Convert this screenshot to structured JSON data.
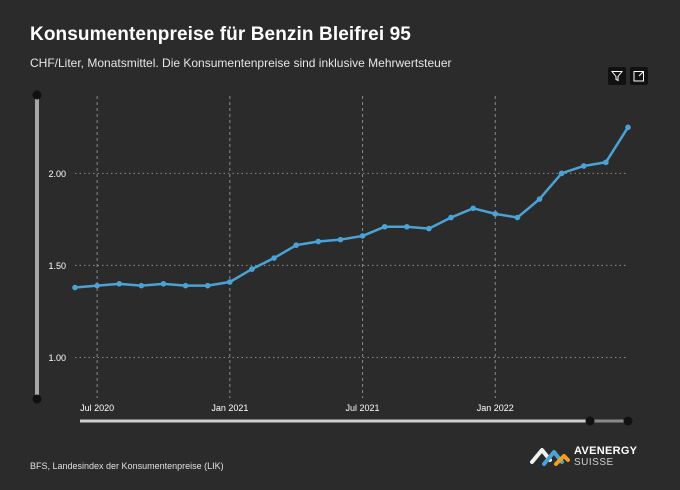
{
  "header": {
    "title": "Konsumentenpreise für Benzin Bleifrei 95",
    "subtitle": "CHF/Liter, Monatsmittel. Die Konsumentenpreise sind inklusive Mehrwertsteuer"
  },
  "toolbar": {
    "filter_icon": "filter-icon",
    "expand_icon": "expand-icon"
  },
  "footer": {
    "source": "BFS, Landesindex der Konsumentenpreise (LIK)",
    "logo_line1": "AVENERGY",
    "logo_line2": "SUISSE"
  },
  "colors": {
    "background": "#2b2b2b",
    "line": "#4aa3d4",
    "grid": "#8a8a8a"
  },
  "chart_data": {
    "type": "line",
    "title": "Konsumentenpreise für Benzin Bleifrei 95",
    "subtitle": "CHF/Liter, Monatsmittel. Die Konsumentenpreise sind inklusive Mehrwertsteuer",
    "xlabel": "",
    "ylabel": "",
    "x": [
      "2020-06",
      "2020-07",
      "2020-08",
      "2020-09",
      "2020-10",
      "2020-11",
      "2020-12",
      "2021-01",
      "2021-02",
      "2021-03",
      "2021-04",
      "2021-05",
      "2021-06",
      "2021-07",
      "2021-08",
      "2021-09",
      "2021-10",
      "2021-11",
      "2021-12",
      "2022-01",
      "2022-02",
      "2022-03",
      "2022-04",
      "2022-05",
      "2022-06",
      "2022-07"
    ],
    "series": [
      {
        "values": [
          1.38,
          1.39,
          1.4,
          1.39,
          1.4,
          1.39,
          1.39,
          1.41,
          1.48,
          1.54,
          1.61,
          1.63,
          1.64,
          1.66,
          1.71,
          1.71,
          1.7,
          1.76,
          1.81,
          1.78,
          1.76,
          1.86,
          2.0,
          2.04,
          2.06,
          2.25
        ]
      }
    ],
    "x_ticks": [
      {
        "x": "2020-07",
        "label": "Jul 2020"
      },
      {
        "x": "2021-01",
        "label": "Jan 2021"
      },
      {
        "x": "2021-07",
        "label": "Jul 2021"
      },
      {
        "x": "2022-01",
        "label": "Jan 2022"
      }
    ],
    "y_ticks": [
      {
        "value": 1.0,
        "label": "1.00"
      },
      {
        "value": 1.5,
        "label": "1.50"
      },
      {
        "value": 2.0,
        "label": "2.00"
      }
    ],
    "ylim": [
      0.78,
      2.42
    ],
    "grid": true,
    "legend": "none"
  }
}
